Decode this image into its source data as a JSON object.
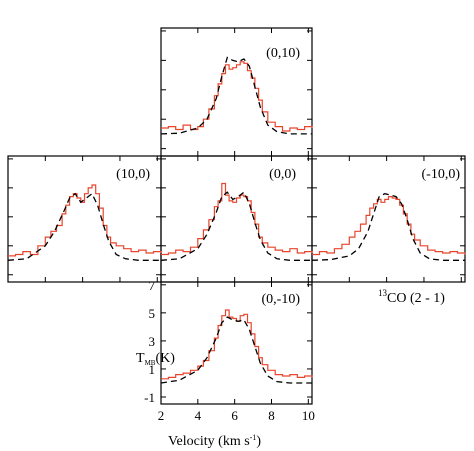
{
  "chart_data": {
    "type": "line",
    "title": "",
    "molecule_label": "13CO (2 - 1)",
    "xlabel": "Velocity (km s-1)",
    "ylabel": "TMB(K)",
    "xlim": [
      2,
      10.2
    ],
    "ylim": [
      -1.5,
      7.2
    ],
    "x_ticks": [
      2,
      4,
      6,
      8,
      10
    ],
    "y_ticks": [
      -1,
      1,
      3,
      5,
      7
    ],
    "grid": false,
    "colors": {
      "observed": "#e8452c",
      "model": "#000000"
    },
    "series_styles": {
      "observed": "solid red histogram",
      "model": "dashed black"
    },
    "panels": [
      {
        "label": "(0,10)",
        "observed": {
          "x": [
            2.0,
            2.4,
            2.8,
            3.2,
            3.6,
            4.0,
            4.3,
            4.6,
            4.9,
            5.1,
            5.3,
            5.5,
            5.7,
            5.9,
            6.1,
            6.3,
            6.5,
            6.7,
            6.9,
            7.1,
            7.3,
            7.5,
            7.8,
            8.2,
            8.6,
            9.0,
            9.4,
            9.8,
            10.2
          ],
          "y": [
            0.4,
            0.5,
            0.3,
            0.6,
            0.3,
            0.5,
            1.0,
            1.7,
            2.6,
            3.4,
            4.1,
            4.7,
            4.4,
            4.5,
            4.7,
            4.9,
            4.8,
            4.3,
            3.8,
            3.1,
            2.3,
            1.5,
            0.8,
            0.5,
            0.2,
            0.4,
            0.3,
            0.5,
            0.4
          ]
        },
        "model": {
          "x": [
            2.0,
            3.0,
            4.0,
            4.5,
            5.0,
            5.3,
            5.6,
            5.9,
            6.2,
            6.5,
            6.8,
            7.1,
            7.4,
            7.8,
            8.3,
            9.0,
            10.2
          ],
          "y": [
            0.0,
            0.05,
            0.4,
            1.0,
            2.4,
            3.9,
            5.2,
            5.0,
            4.9,
            5.1,
            4.6,
            3.2,
            1.8,
            0.6,
            0.15,
            0.0,
            0.0
          ]
        }
      },
      {
        "label": "(10,0)",
        "observed": {
          "x": [
            2.0,
            2.4,
            2.8,
            3.2,
            3.6,
            4.0,
            4.3,
            4.6,
            4.9,
            5.1,
            5.3,
            5.5,
            5.7,
            5.9,
            6.1,
            6.3,
            6.5,
            6.7,
            6.9,
            7.1,
            7.3,
            7.5,
            7.8,
            8.2,
            8.6,
            9.0,
            9.4,
            9.8,
            10.2
          ],
          "y": [
            0.3,
            0.4,
            0.6,
            0.4,
            1.0,
            1.6,
            2.0,
            2.4,
            3.2,
            3.8,
            4.4,
            4.6,
            4.3,
            4.0,
            4.6,
            5.0,
            5.2,
            4.6,
            3.6,
            2.4,
            1.6,
            1.2,
            1.0,
            0.8,
            0.6,
            0.7,
            0.5,
            0.6,
            0.5
          ]
        },
        "model": {
          "x": [
            2.0,
            3.0,
            4.0,
            4.5,
            5.0,
            5.3,
            5.6,
            5.9,
            6.2,
            6.5,
            6.8,
            7.1,
            7.4,
            7.8,
            8.3,
            9.0,
            10.2
          ],
          "y": [
            0.0,
            0.1,
            1.0,
            2.0,
            3.4,
            4.3,
            4.6,
            4.0,
            4.3,
            4.6,
            3.8,
            2.5,
            1.3,
            0.4,
            0.1,
            0.0,
            0.0
          ]
        }
      },
      {
        "label": "(0,0)",
        "observed": {
          "x": [
            2.0,
            2.4,
            2.8,
            3.2,
            3.6,
            4.0,
            4.3,
            4.6,
            4.9,
            5.1,
            5.3,
            5.5,
            5.7,
            5.9,
            6.1,
            6.3,
            6.5,
            6.7,
            6.9,
            7.1,
            7.3,
            7.5,
            7.8,
            8.2,
            8.6,
            9.0,
            9.4,
            9.8,
            10.2
          ],
          "y": [
            0.4,
            0.5,
            0.7,
            0.6,
            0.9,
            1.5,
            2.1,
            2.8,
            3.7,
            4.1,
            5.3,
            4.5,
            4.1,
            4.0,
            4.3,
            4.5,
            4.4,
            4.1,
            3.3,
            2.5,
            1.6,
            1.2,
            0.9,
            0.7,
            0.6,
            0.8,
            0.5,
            0.6,
            0.5
          ]
        },
        "model": {
          "x": [
            2.0,
            3.0,
            4.0,
            4.5,
            5.0,
            5.3,
            5.6,
            5.9,
            6.2,
            6.5,
            6.8,
            7.1,
            7.4,
            7.8,
            8.3,
            9.0,
            10.2
          ],
          "y": [
            0.0,
            0.1,
            0.8,
            1.8,
            3.3,
            4.4,
            4.7,
            4.2,
            4.4,
            4.7,
            3.9,
            2.6,
            1.4,
            0.5,
            0.1,
            0.0,
            0.0
          ]
        }
      },
      {
        "label": "(-10,0)",
        "observed": {
          "x": [
            2.0,
            2.4,
            2.8,
            3.2,
            3.6,
            4.0,
            4.3,
            4.6,
            4.9,
            5.1,
            5.3,
            5.5,
            5.7,
            5.9,
            6.1,
            6.3,
            6.5,
            6.7,
            6.9,
            7.1,
            7.3,
            7.5,
            7.8,
            8.2,
            8.6,
            9.0,
            9.4,
            9.8,
            10.2
          ],
          "y": [
            0.4,
            0.6,
            0.5,
            0.8,
            1.1,
            1.6,
            2.0,
            2.5,
            3.1,
            3.6,
            3.9,
            4.2,
            4.0,
            4.2,
            4.4,
            4.3,
            4.2,
            3.8,
            3.2,
            2.5,
            1.8,
            1.4,
            1.0,
            0.7,
            0.6,
            0.5,
            0.6,
            0.5,
            0.4
          ]
        },
        "model": {
          "x": [
            2.0,
            3.0,
            4.0,
            4.5,
            5.0,
            5.3,
            5.6,
            5.9,
            6.2,
            6.5,
            6.8,
            7.1,
            7.4,
            7.8,
            8.3,
            9.0,
            10.2
          ],
          "y": [
            0.0,
            0.05,
            0.3,
            0.8,
            2.0,
            3.2,
            4.4,
            4.6,
            4.5,
            4.4,
            3.9,
            2.8,
            1.5,
            0.5,
            0.1,
            0.0,
            0.0
          ]
        }
      },
      {
        "label": "(0,-10)",
        "observed": {
          "x": [
            2.0,
            2.4,
            2.8,
            3.2,
            3.6,
            4.0,
            4.3,
            4.6,
            4.9,
            5.1,
            5.3,
            5.5,
            5.7,
            5.9,
            6.1,
            6.3,
            6.5,
            6.7,
            6.9,
            7.1,
            7.3,
            7.5,
            7.8,
            8.2,
            8.6,
            9.0,
            9.4,
            9.8,
            10.2
          ],
          "y": [
            0.3,
            0.4,
            0.6,
            0.7,
            0.9,
            1.2,
            1.6,
            2.3,
            3.2,
            4.1,
            4.8,
            5.2,
            4.7,
            4.6,
            4.4,
            4.8,
            4.9,
            4.3,
            3.5,
            2.6,
            1.8,
            1.3,
            0.9,
            0.6,
            0.5,
            0.6,
            0.4,
            0.5,
            0.4
          ]
        },
        "model": {
          "x": [
            2.0,
            3.0,
            4.0,
            4.5,
            5.0,
            5.3,
            5.6,
            5.9,
            6.2,
            6.5,
            6.8,
            7.1,
            7.4,
            7.8,
            8.3,
            9.0,
            10.2
          ],
          "y": [
            0.0,
            0.2,
            0.9,
            1.8,
            3.2,
            4.3,
            4.7,
            4.5,
            4.4,
            4.5,
            3.8,
            2.6,
            1.4,
            0.5,
            0.1,
            0.0,
            0.0
          ]
        }
      }
    ]
  }
}
